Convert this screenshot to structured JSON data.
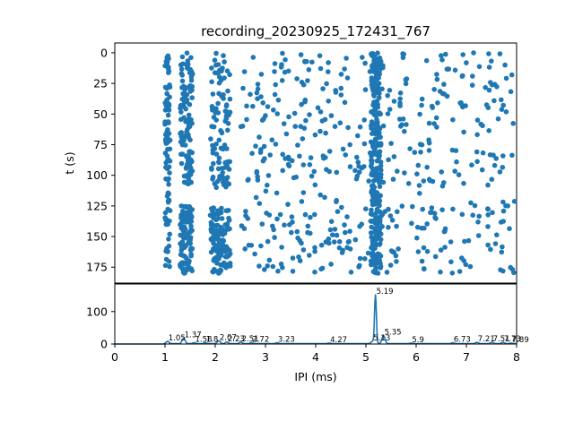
{
  "chart_data": [
    {
      "type": "scatter",
      "title": "recording_20230925_172431_767",
      "xlabel": "",
      "ylabel": "t (s)",
      "xlim": [
        0,
        8
      ],
      "ylim": [
        188,
        -8
      ],
      "y_inverted": true,
      "yticks": [
        0,
        25,
        50,
        75,
        100,
        125,
        150,
        175
      ],
      "marker_color": "#1f77b4",
      "description": "Raster of spike intervals: each point is an IPI (x, shares x-axis with histogram below) at recording time t (s). Dense clusters near IPI 1.0, 1.3-1.5, 2.0-2.3, 5.1-5.3; vertical bands at x=5.19; gaps near t=110-120.",
      "series": [
        {
          "x_range": [
            1.0,
            8.0
          ],
          "t_range": [
            0,
            180
          ],
          "point_count_estimate": 1400
        }
      ],
      "clusters": [
        {
          "x": [
            1.0,
            1.1
          ],
          "t": [
            [
              0,
              180
            ]
          ],
          "density": "medium"
        },
        {
          "x": [
            1.3,
            1.55
          ],
          "t": [
            [
              0,
              110
            ],
            [
              125,
              180
            ]
          ],
          "density": "high"
        },
        {
          "x": [
            1.9,
            2.3
          ],
          "t": [
            [
              0,
              110
            ],
            [
              125,
              180
            ]
          ],
          "density": "high"
        },
        {
          "x": [
            5.1,
            5.3
          ],
          "t": [
            [
              0,
              180
            ]
          ],
          "density": "very-high"
        },
        {
          "x": [
            2.5,
            8.0
          ],
          "t": [
            [
              0,
              180
            ]
          ],
          "density": "low"
        }
      ]
    },
    {
      "type": "line",
      "title": "",
      "xlabel": "IPI (ms)",
      "ylabel": "",
      "xlim": [
        0,
        8
      ],
      "ylim": [
        0,
        185
      ],
      "xticks": [
        0,
        1,
        2,
        3,
        4,
        5,
        6,
        7,
        8
      ],
      "yticks": [
        0,
        100
      ],
      "line_color": "#1f77b4",
      "peaks": [
        {
          "x": 1.05,
          "y": 8,
          "label": "1.05"
        },
        {
          "x": 1.37,
          "y": 18,
          "label": "1.37"
        },
        {
          "x": 1.58,
          "y": 4,
          "label": "1.58"
        },
        {
          "x": 1.8,
          "y": 4,
          "label": "1.8"
        },
        {
          "x": 2.07,
          "y": 10,
          "label": "2.07"
        },
        {
          "x": 2.23,
          "y": 6,
          "label": "2.23"
        },
        {
          "x": 2.51,
          "y": 6,
          "label": "2.51"
        },
        {
          "x": 2.72,
          "y": 4,
          "label": "2.72"
        },
        {
          "x": 3.23,
          "y": 4,
          "label": "3.23"
        },
        {
          "x": 4.27,
          "y": 3,
          "label": "4.27"
        },
        {
          "x": 5.13,
          "y": 8,
          "label": "5.13"
        },
        {
          "x": 5.19,
          "y": 152,
          "label": "5.19"
        },
        {
          "x": 5.35,
          "y": 26,
          "label": "5.35"
        },
        {
          "x": 5.9,
          "y": 3,
          "label": "5.9"
        },
        {
          "x": 6.73,
          "y": 4,
          "label": "6.73"
        },
        {
          "x": 7.21,
          "y": 5,
          "label": "7.21"
        },
        {
          "x": 7.51,
          "y": 5,
          "label": "7.51"
        },
        {
          "x": 7.73,
          "y": 5,
          "label": "7.73"
        },
        {
          "x": 7.89,
          "y": 3,
          "label": "7.89"
        }
      ]
    }
  ]
}
